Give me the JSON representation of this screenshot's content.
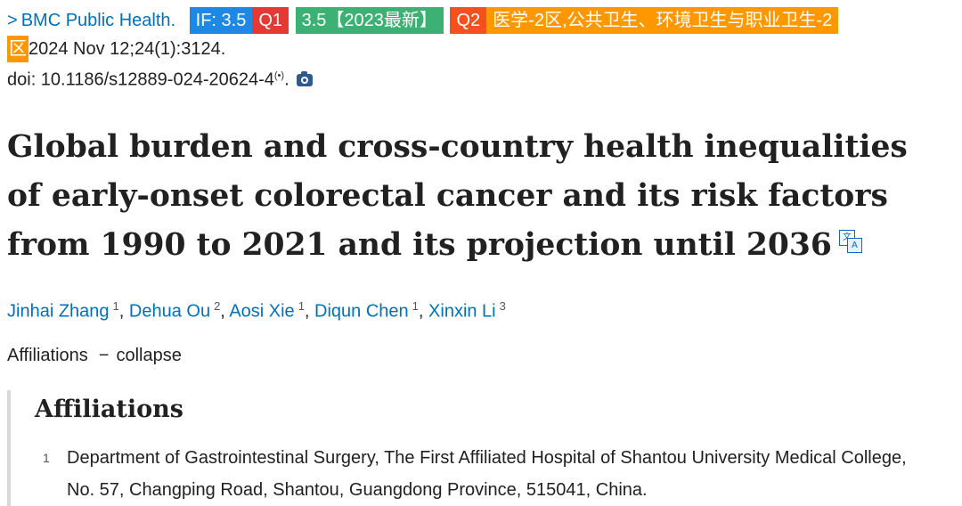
{
  "citation": {
    "chevron": ">",
    "journal": "BMC Public Health.",
    "tags": {
      "if": "IF: 3.5",
      "q1": "Q1",
      "if2023": "3.5【2023最新】",
      "q2": "Q2",
      "category_line1": "医学-2区,公共卫生、环境卫生与职业卫生-2",
      "category_line2": "区"
    },
    "date_volume": "2024 Nov 12;24(1):3124.",
    "doi": "doi: 10.1186/s12889-024-20624-4",
    "doi_sup": "(•)",
    "doi_period": "."
  },
  "article": {
    "title": "Global burden and cross-country health inequalities of early-onset colorectal cancer and its risk factors from 1990 to 2021 and its projection until 2036",
    "translate_icon_chars": [
      "文",
      "A"
    ]
  },
  "authors": [
    {
      "name": "Jinhai Zhang",
      "aff": "1"
    },
    {
      "name": "Dehua Ou",
      "aff": "2"
    },
    {
      "name": "Aosi Xie",
      "aff": "1"
    },
    {
      "name": "Diqun Chen",
      "aff": "1"
    },
    {
      "name": "Xinxin Li",
      "aff": "3"
    }
  ],
  "affiliations_toggle": {
    "label": "Affiliations",
    "dash": "−",
    "action": "collapse"
  },
  "affiliations_panel": {
    "heading": "Affiliations",
    "items": [
      {
        "num": "1",
        "text": "Department of Gastrointestinal Surgery, The First Affiliated Hospital of Shantou University Medical College, No. 57, Changping Road, Shantou, Guangdong Province, 515041, China."
      }
    ]
  },
  "colors": {
    "link": "#0071bc",
    "tag_if": "#1e88e5",
    "tag_q1": "#e53935",
    "tag_2023": "#3bb273",
    "tag_q2": "#f4511e",
    "tag_category": "#ff9800"
  }
}
